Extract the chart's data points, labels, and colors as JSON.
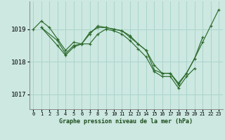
{
  "title": "Graphe pression niveau de la mer (hPa)",
  "bg_color": "#cce8e0",
  "grid_color": "#aad4cc",
  "line_color": "#2d6b2d",
  "xlim": [
    -0.5,
    23.5
  ],
  "ylim": [
    1016.55,
    1019.85
  ],
  "yticks": [
    1017,
    1018,
    1019
  ],
  "xticks": [
    0,
    1,
    2,
    3,
    4,
    5,
    6,
    7,
    8,
    9,
    10,
    11,
    12,
    13,
    14,
    15,
    16,
    17,
    18,
    19,
    20,
    21,
    22,
    23
  ],
  "series": [
    {
      "x": [
        0,
        1,
        2,
        3,
        4,
        5,
        6,
        7,
        8,
        9,
        10,
        11,
        12,
        13,
        14,
        15,
        16,
        17,
        18,
        19,
        20,
        21,
        22,
        23
      ],
      "y": [
        1019.0,
        1019.25,
        1019.05,
        1018.7,
        1018.35,
        1018.6,
        1018.55,
        1018.9,
        1019.05,
        1019.05,
        1019.0,
        1018.95,
        1018.8,
        1018.55,
        1018.35,
        1017.75,
        1017.65,
        1017.65,
        1017.35,
        1017.65,
        1018.1,
        1018.6,
        1019.1,
        1019.6
      ]
    },
    {
      "x": [
        1,
        3,
        4,
        5,
        6,
        7,
        8,
        9,
        10,
        11,
        12,
        13,
        14,
        15,
        16,
        17,
        18,
        19,
        20
      ],
      "y": [
        1019.05,
        1018.5,
        1018.2,
        1018.45,
        1018.55,
        1018.55,
        1018.85,
        1019.0,
        1018.95,
        1018.85,
        1018.65,
        1018.4,
        1018.15,
        1017.7,
        1017.55,
        1017.55,
        1017.2,
        1017.55,
        1017.8
      ]
    },
    {
      "x": [
        1,
        3,
        4,
        5,
        6,
        7,
        8,
        9,
        10,
        11,
        12,
        13,
        14,
        15,
        16,
        17,
        18,
        19,
        20,
        21
      ],
      "y": [
        1019.05,
        1018.65,
        1018.25,
        1018.5,
        1018.55,
        1018.85,
        1019.1,
        1019.05,
        1019.0,
        1018.95,
        1018.75,
        1018.55,
        1018.35,
        1017.9,
        1017.65,
        1017.65,
        1017.3,
        1017.65,
        1018.1,
        1018.75
      ]
    }
  ]
}
